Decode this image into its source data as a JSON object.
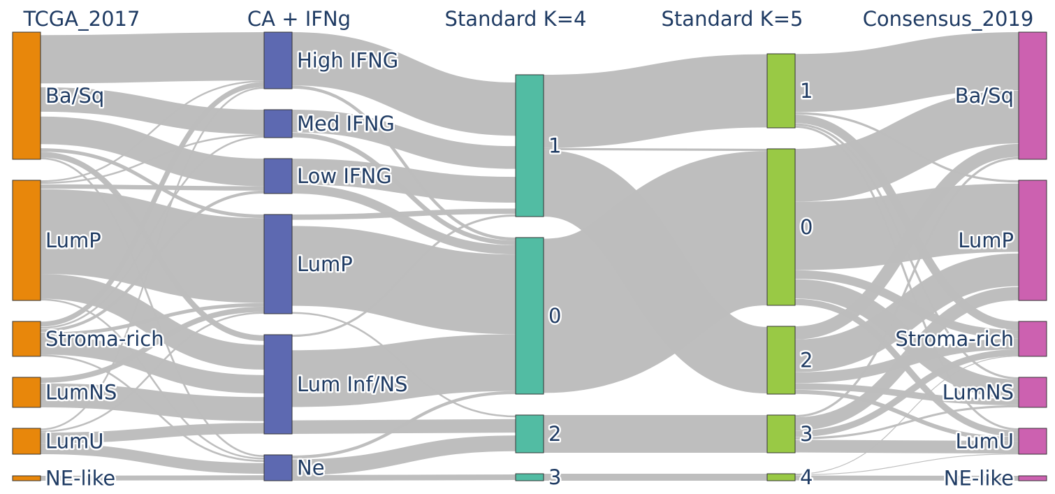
{
  "chart_data": {
    "type": "sankey",
    "colors": {
      "TCGA_2017": "#e8870b",
      "CA + IFNg": "#5d69b1",
      "Standard K=4": "#52bca3",
      "Standard K=5": "#99c945",
      "Consensus_2019": "#cc61b0",
      "link": "#bdbdbd"
    },
    "columns": [
      {
        "title": "TCGA_2017",
        "nodes": [
          "Ba/Sq",
          "LumP",
          "Stroma-rich",
          "LumNS",
          "LumU",
          "NE-like"
        ]
      },
      {
        "title": "CA + IFNg",
        "nodes": [
          "High IFNG",
          "Med IFNG",
          "Low IFNG",
          "LumP",
          "Lum Inf/NS",
          "Ne"
        ]
      },
      {
        "title": "Standard K=4",
        "nodes": [
          "1",
          "0",
          "2",
          "3"
        ]
      },
      {
        "title": "Standard K=5",
        "nodes": [
          "1",
          "0",
          "2",
          "3",
          "4"
        ]
      },
      {
        "title": "Consensus_2019",
        "nodes": [
          "Ba/Sq",
          "LumP",
          "Stroma-rich",
          "LumNS",
          "LumU",
          "NE-like"
        ]
      }
    ],
    "flows": [
      [
        {
          "from": "Ba/Sq",
          "to": "High IFNG",
          "value": 58
        },
        {
          "from": "Ba/Sq",
          "to": "Med IFNG",
          "value": 28
        },
        {
          "from": "Ba/Sq",
          "to": "Low IFNG",
          "value": 38
        },
        {
          "from": "Ba/Sq",
          "to": "LumP",
          "value": 4
        },
        {
          "from": "Ba/Sq",
          "to": "Lum Inf/NS",
          "value": 6
        },
        {
          "from": "Ba/Sq",
          "to": "Ne",
          "value": 2
        },
        {
          "from": "LumP",
          "to": "High IFNG",
          "value": 2
        },
        {
          "from": "LumP",
          "to": "Med IFNG",
          "value": 2
        },
        {
          "from": "LumP",
          "to": "Low IFNG",
          "value": 6
        },
        {
          "from": "LumP",
          "to": "LumP",
          "value": 96
        },
        {
          "from": "LumP",
          "to": "Lum Inf/NS",
          "value": 28
        },
        {
          "from": "LumP",
          "to": "Ne",
          "value": 2
        },
        {
          "from": "Stroma-rich",
          "to": "High IFNG",
          "value": 6
        },
        {
          "from": "Stroma-rich",
          "to": "Med IFNG",
          "value": 2
        },
        {
          "from": "Stroma-rich",
          "to": "Low IFNG",
          "value": 4
        },
        {
          "from": "Stroma-rich",
          "to": "LumP",
          "value": 4
        },
        {
          "from": "Stroma-rich",
          "to": "Lum Inf/NS",
          "value": 20
        },
        {
          "from": "Stroma-rich",
          "to": "Ne",
          "value": 2
        },
        {
          "from": "LumNS",
          "to": "LumP",
          "value": 6
        },
        {
          "from": "LumNS",
          "to": "Lum Inf/NS",
          "value": 24
        },
        {
          "from": "LumU",
          "to": "High IFNG",
          "value": 2
        },
        {
          "from": "LumU",
          "to": "LumP",
          "value": 2
        },
        {
          "from": "LumU",
          "to": "Lum Inf/NS",
          "value": 10
        },
        {
          "from": "LumU",
          "to": "Ne",
          "value": 10
        },
        {
          "from": "NE-like",
          "to": "Ne",
          "value": 5
        }
      ],
      [
        {
          "from": "High IFNG",
          "to": "1",
          "value": 64
        },
        {
          "from": "High IFNG",
          "to": "0",
          "value": 4
        },
        {
          "from": "Med IFNG",
          "to": "1",
          "value": 26
        },
        {
          "from": "Med IFNG",
          "to": "0",
          "value": 6
        },
        {
          "from": "Low IFNG",
          "to": "1",
          "value": 34
        },
        {
          "from": "Low IFNG",
          "to": "0",
          "value": 12
        },
        {
          "from": "LumP",
          "to": "1",
          "value": 6
        },
        {
          "from": "LumP",
          "to": "0",
          "value": 104
        },
        {
          "from": "LumP",
          "to": "2",
          "value": 2
        },
        {
          "from": "Lum Inf/NS",
          "to": "1",
          "value": 2
        },
        {
          "from": "Lum Inf/NS",
          "to": "0",
          "value": 74
        },
        {
          "from": "Lum Inf/NS",
          "to": "2",
          "value": 12
        },
        {
          "from": "Ne",
          "to": "0",
          "value": 4
        },
        {
          "from": "Ne",
          "to": "2",
          "value": 14
        },
        {
          "from": "Ne",
          "to": "3",
          "value": 5
        }
      ],
      [
        {
          "from": "1",
          "to": "1",
          "value": 66
        },
        {
          "from": "1",
          "to": "0",
          "value": 2
        },
        {
          "from": "1",
          "to": "2",
          "value": 60
        },
        {
          "from": "0",
          "to": "0",
          "value": 140
        },
        {
          "from": "0",
          "to": "2",
          "value": 0
        },
        {
          "from": "2",
          "to": "3",
          "value": 34
        },
        {
          "from": "3",
          "to": "4",
          "value": 5
        }
      ],
      [
        {
          "from": "1",
          "to": "Ba/Sq",
          "value": 52
        },
        {
          "from": "1",
          "to": "LumP",
          "value": 2
        },
        {
          "from": "1",
          "to": "Stroma-rich",
          "value": 8
        },
        {
          "from": "1",
          "to": "LumNS",
          "value": 2
        },
        {
          "from": "1",
          "to": "LumU",
          "value": 2
        },
        {
          "from": "0",
          "to": "Ba/Sq",
          "value": 48
        },
        {
          "from": "0",
          "to": "LumP",
          "value": 62
        },
        {
          "from": "0",
          "to": "Stroma-rich",
          "value": 8
        },
        {
          "from": "0",
          "to": "LumNS",
          "value": 18
        },
        {
          "from": "0",
          "to": "LumU",
          "value": 6
        },
        {
          "from": "2",
          "to": "Ba/Sq",
          "value": 12
        },
        {
          "from": "2",
          "to": "LumP",
          "value": 30
        },
        {
          "from": "2",
          "to": "Stroma-rich",
          "value": 10
        },
        {
          "from": "2",
          "to": "LumNS",
          "value": 6
        },
        {
          "from": "2",
          "to": "LumU",
          "value": 4
        },
        {
          "from": "3",
          "to": "Ba/Sq",
          "value": 2
        },
        {
          "from": "3",
          "to": "LumP",
          "value": 12
        },
        {
          "from": "3",
          "to": "Stroma-rich",
          "value": 6
        },
        {
          "from": "3",
          "to": "LumNS",
          "value": 2
        },
        {
          "from": "3",
          "to": "LumU",
          "value": 12
        },
        {
          "from": "4",
          "to": "Stroma-rich",
          "value": 0.5
        },
        {
          "from": "4",
          "to": "LumU",
          "value": 0.5
        },
        {
          "from": "4",
          "to": "NE-like",
          "value": 4
        }
      ]
    ]
  }
}
